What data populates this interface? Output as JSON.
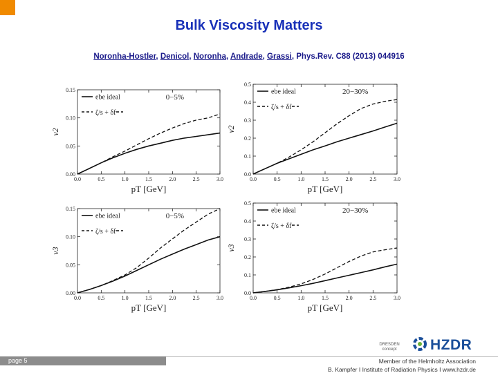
{
  "slide": {
    "title": "Bulk Viscosity Matters",
    "citation_authors": [
      "Noronha-Hostler",
      "Denicol",
      "Noronha",
      "Andrade",
      "Grassi"
    ],
    "citation_journal": ", Phys.Rev. C88 (2013) 044916"
  },
  "footer": {
    "page": "page 5",
    "member": "Member of the Helmholtz Association",
    "contact": "B. Kampfer  I  Institute of Radiation Physics  I  www.hzdr.de",
    "logo_left": "DRESDEN concept",
    "logo_right": "HZDR"
  },
  "colors": {
    "accent": "#f08a00",
    "title": "#1830b8",
    "citation": "#1a1a8a",
    "logo": "#1b4f9a"
  },
  "chart_data": [
    {
      "type": "line",
      "ylabel": "v2",
      "xlabel": "pT [GeV]",
      "centrality": "0−5%",
      "xlim": [
        0.0,
        3.0
      ],
      "ylim": [
        0.0,
        0.15
      ],
      "xticks": [
        "0.0",
        "0.5",
        "1.0",
        "1.5",
        "2.0",
        "2.5",
        "3.0"
      ],
      "yticks": [
        "0.00",
        "0.05",
        "0.10",
        "0.15"
      ],
      "legend": [
        "ebe ideal",
        "ζ/s + δf"
      ],
      "x": [
        0,
        0.25,
        0.5,
        0.75,
        1.0,
        1.25,
        1.5,
        1.75,
        2.0,
        2.25,
        2.5,
        2.75,
        3.0
      ],
      "series": [
        {
          "name": "ebe ideal",
          "style": "solid",
          "values": [
            0,
            0.01,
            0.02,
            0.029,
            0.037,
            0.044,
            0.05,
            0.055,
            0.06,
            0.064,
            0.067,
            0.07,
            0.073
          ]
        },
        {
          "name": "ζ/s + δf",
          "style": "dashed",
          "values": [
            0,
            0.01,
            0.02,
            0.031,
            0.041,
            0.052,
            0.063,
            0.073,
            0.082,
            0.09,
            0.096,
            0.1,
            0.107
          ]
        }
      ]
    },
    {
      "type": "line",
      "ylabel": "v2",
      "xlabel": "pT [GeV]",
      "centrality": "20−30%",
      "xlim": [
        0.0,
        3.0
      ],
      "ylim": [
        0.0,
        0.5
      ],
      "xticks": [
        "0.0",
        "0.5",
        "1.0",
        "1.5",
        "2.0",
        "2.5",
        "3.0"
      ],
      "yticks": [
        "0.0",
        "0.1",
        "0.2",
        "0.3",
        "0.4",
        "0.5"
      ],
      "legend": [
        "ebe ideal",
        "ζ/s + δf"
      ],
      "x": [
        0,
        0.25,
        0.5,
        0.75,
        1.0,
        1.25,
        1.5,
        1.75,
        2.0,
        2.25,
        2.5,
        2.75,
        3.0
      ],
      "series": [
        {
          "name": "ebe ideal",
          "style": "solid",
          "values": [
            0,
            0.03,
            0.06,
            0.085,
            0.11,
            0.135,
            0.157,
            0.18,
            0.2,
            0.22,
            0.24,
            0.262,
            0.283
          ]
        },
        {
          "name": "ζ/s + δf",
          "style": "dashed",
          "values": [
            0,
            0.03,
            0.06,
            0.095,
            0.135,
            0.18,
            0.23,
            0.28,
            0.325,
            0.365,
            0.39,
            0.405,
            0.415
          ]
        }
      ]
    },
    {
      "type": "line",
      "ylabel": "v3",
      "xlabel": "pT [GeV]",
      "centrality": "0−5%",
      "xlim": [
        0.0,
        3.0
      ],
      "ylim": [
        0.0,
        0.15
      ],
      "xticks": [
        "0.0",
        "0.5",
        "1.0",
        "1.5",
        "2.0",
        "2.5",
        "3.0"
      ],
      "yticks": [
        "0.00",
        "0.05",
        "0.10",
        "0.15"
      ],
      "legend": [
        "ebe ideal",
        "ζ/s + δf"
      ],
      "x": [
        0,
        0.25,
        0.5,
        0.75,
        1.0,
        1.25,
        1.5,
        1.75,
        2.0,
        2.25,
        2.5,
        2.75,
        3.0
      ],
      "series": [
        {
          "name": "ebe ideal",
          "style": "solid",
          "values": [
            0,
            0.006,
            0.013,
            0.021,
            0.03,
            0.04,
            0.05,
            0.06,
            0.069,
            0.078,
            0.086,
            0.094,
            0.1
          ]
        },
        {
          "name": "ζ/s + δf",
          "style": "dashed",
          "values": [
            0,
            0.006,
            0.013,
            0.022,
            0.032,
            0.045,
            0.062,
            0.08,
            0.096,
            0.112,
            0.126,
            0.14,
            0.15
          ]
        }
      ]
    },
    {
      "type": "line",
      "ylabel": "v3",
      "xlabel": "pT [GeV]",
      "centrality": "20−30%",
      "xlim": [
        0.0,
        3.0
      ],
      "ylim": [
        0.0,
        0.5
      ],
      "xticks": [
        "0.0",
        "0.5",
        "1.0",
        "1.5",
        "2.0",
        "2.5",
        "3.0"
      ],
      "yticks": [
        "0.0",
        "0.1",
        "0.2",
        "0.3",
        "0.4",
        "0.5"
      ],
      "legend": [
        "ebe ideal",
        "ζ/s + δf"
      ],
      "x": [
        0,
        0.25,
        0.5,
        0.75,
        1.0,
        1.25,
        1.5,
        1.75,
        2.0,
        2.25,
        2.5,
        2.75,
        3.0
      ],
      "series": [
        {
          "name": "ebe ideal",
          "style": "solid",
          "values": [
            0,
            0.008,
            0.017,
            0.028,
            0.04,
            0.053,
            0.068,
            0.083,
            0.098,
            0.113,
            0.128,
            0.145,
            0.16
          ]
        },
        {
          "name": "ζ/s + δf",
          "style": "dashed",
          "values": [
            0,
            0.008,
            0.018,
            0.032,
            0.05,
            0.075,
            0.105,
            0.14,
            0.175,
            0.205,
            0.228,
            0.24,
            0.25
          ]
        }
      ]
    }
  ]
}
